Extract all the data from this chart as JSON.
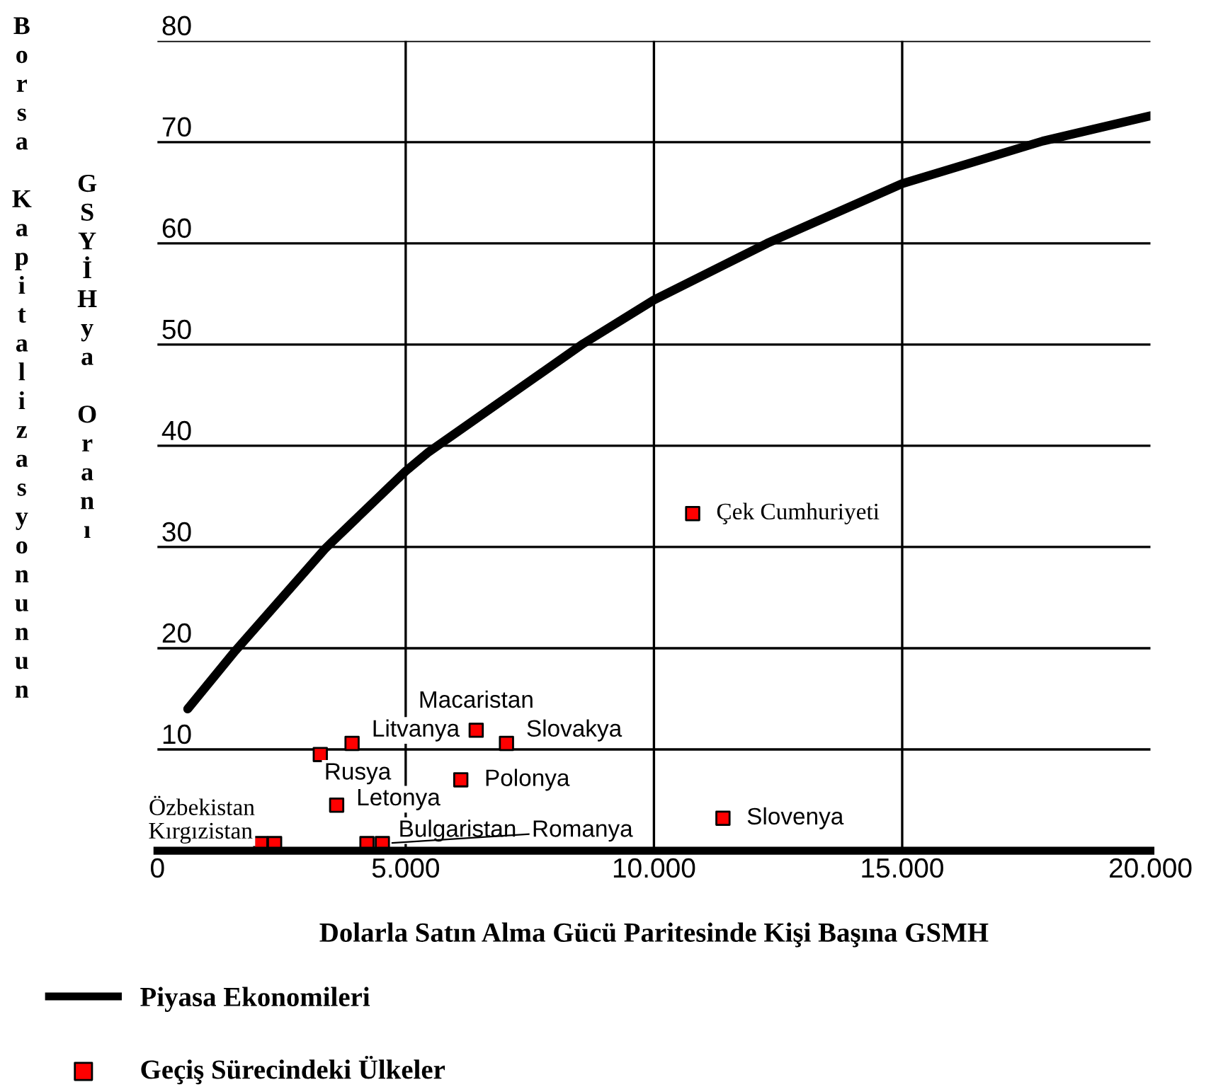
{
  "chart_data": {
    "type": "scatter",
    "xlabel": "Dolarla Satın Alma Gücü Paritesinde Kişi Başına GSMH",
    "ylabel": "Borsa Kapitalizasyonunun GSYİHya Oranı",
    "xlim": [
      0,
      20000
    ],
    "ylim": [
      0,
      80
    ],
    "xticks": [
      {
        "value": 0,
        "label": "0"
      },
      {
        "value": 5000,
        "label": "5.000"
      },
      {
        "value": 10000,
        "label": "10.000"
      },
      {
        "value": 15000,
        "label": "15.000"
      },
      {
        "value": 20000,
        "label": "20.000"
      }
    ],
    "yticks": [
      {
        "value": 0,
        "label": null
      },
      10,
      20,
      30,
      40,
      50,
      60,
      70,
      80
    ],
    "grid": true,
    "legend": "bottom",
    "marker": "square",
    "series": [
      {
        "name": "Piyasa Ekonomileri",
        "type": "line",
        "color": "#000000",
        "line_style": "solid",
        "marker": "none",
        "x": [
          610,
          1560,
          3390,
          5000,
          5440,
          8580,
          10000,
          12280,
          15000,
          17830,
          20000
        ],
        "values": [
          14.0,
          19.7,
          29.9,
          37.5,
          39.3,
          50.1,
          54.4,
          60.0,
          65.9,
          70.1,
          72.6
        ]
      },
      {
        "name": "Geçiş Sürecindeki Ülkeler",
        "color": "#ff0000",
        "x": [
          10780,
          11390,
          6420,
          7030,
          3920,
          3280,
          6110,
          3610,
          2080,
          2360,
          4220,
          4530
        ],
        "values": [
          33.3,
          3.2,
          11.9,
          10.6,
          10.6,
          9.5,
          7.0,
          4.5,
          0.7,
          0.7,
          0.7,
          0.7
        ]
      }
    ],
    "annotations": [
      {
        "text": "Çek Cumhuriyeti",
        "x": 10780,
        "y": 33.3
      },
      {
        "text": "Slovenya",
        "x": 11390,
        "y": 3.2
      },
      {
        "text": "Macaristan",
        "x": 6420,
        "y": 11.9
      },
      {
        "text": "Slovakya",
        "x": 7030,
        "y": 10.6
      },
      {
        "text": "Litvanya",
        "x": 3920,
        "y": 10.6
      },
      {
        "text": "Rusya",
        "x": 3280,
        "y": 9.5
      },
      {
        "text": "Polonya",
        "x": 6110,
        "y": 7.0
      },
      {
        "text": "Letonya",
        "x": 3610,
        "y": 4.5
      },
      {
        "text": "Kırgızistan",
        "x": 2080,
        "y": 0.7
      },
      {
        "text": "Özbekistan",
        "x": 2360,
        "y": 0.7
      },
      {
        "text": "Bulgaristan",
        "x": 4220,
        "y": 0.7
      },
      {
        "text": "Romanya",
        "x": 4530,
        "y": 0.7
      }
    ]
  }
}
